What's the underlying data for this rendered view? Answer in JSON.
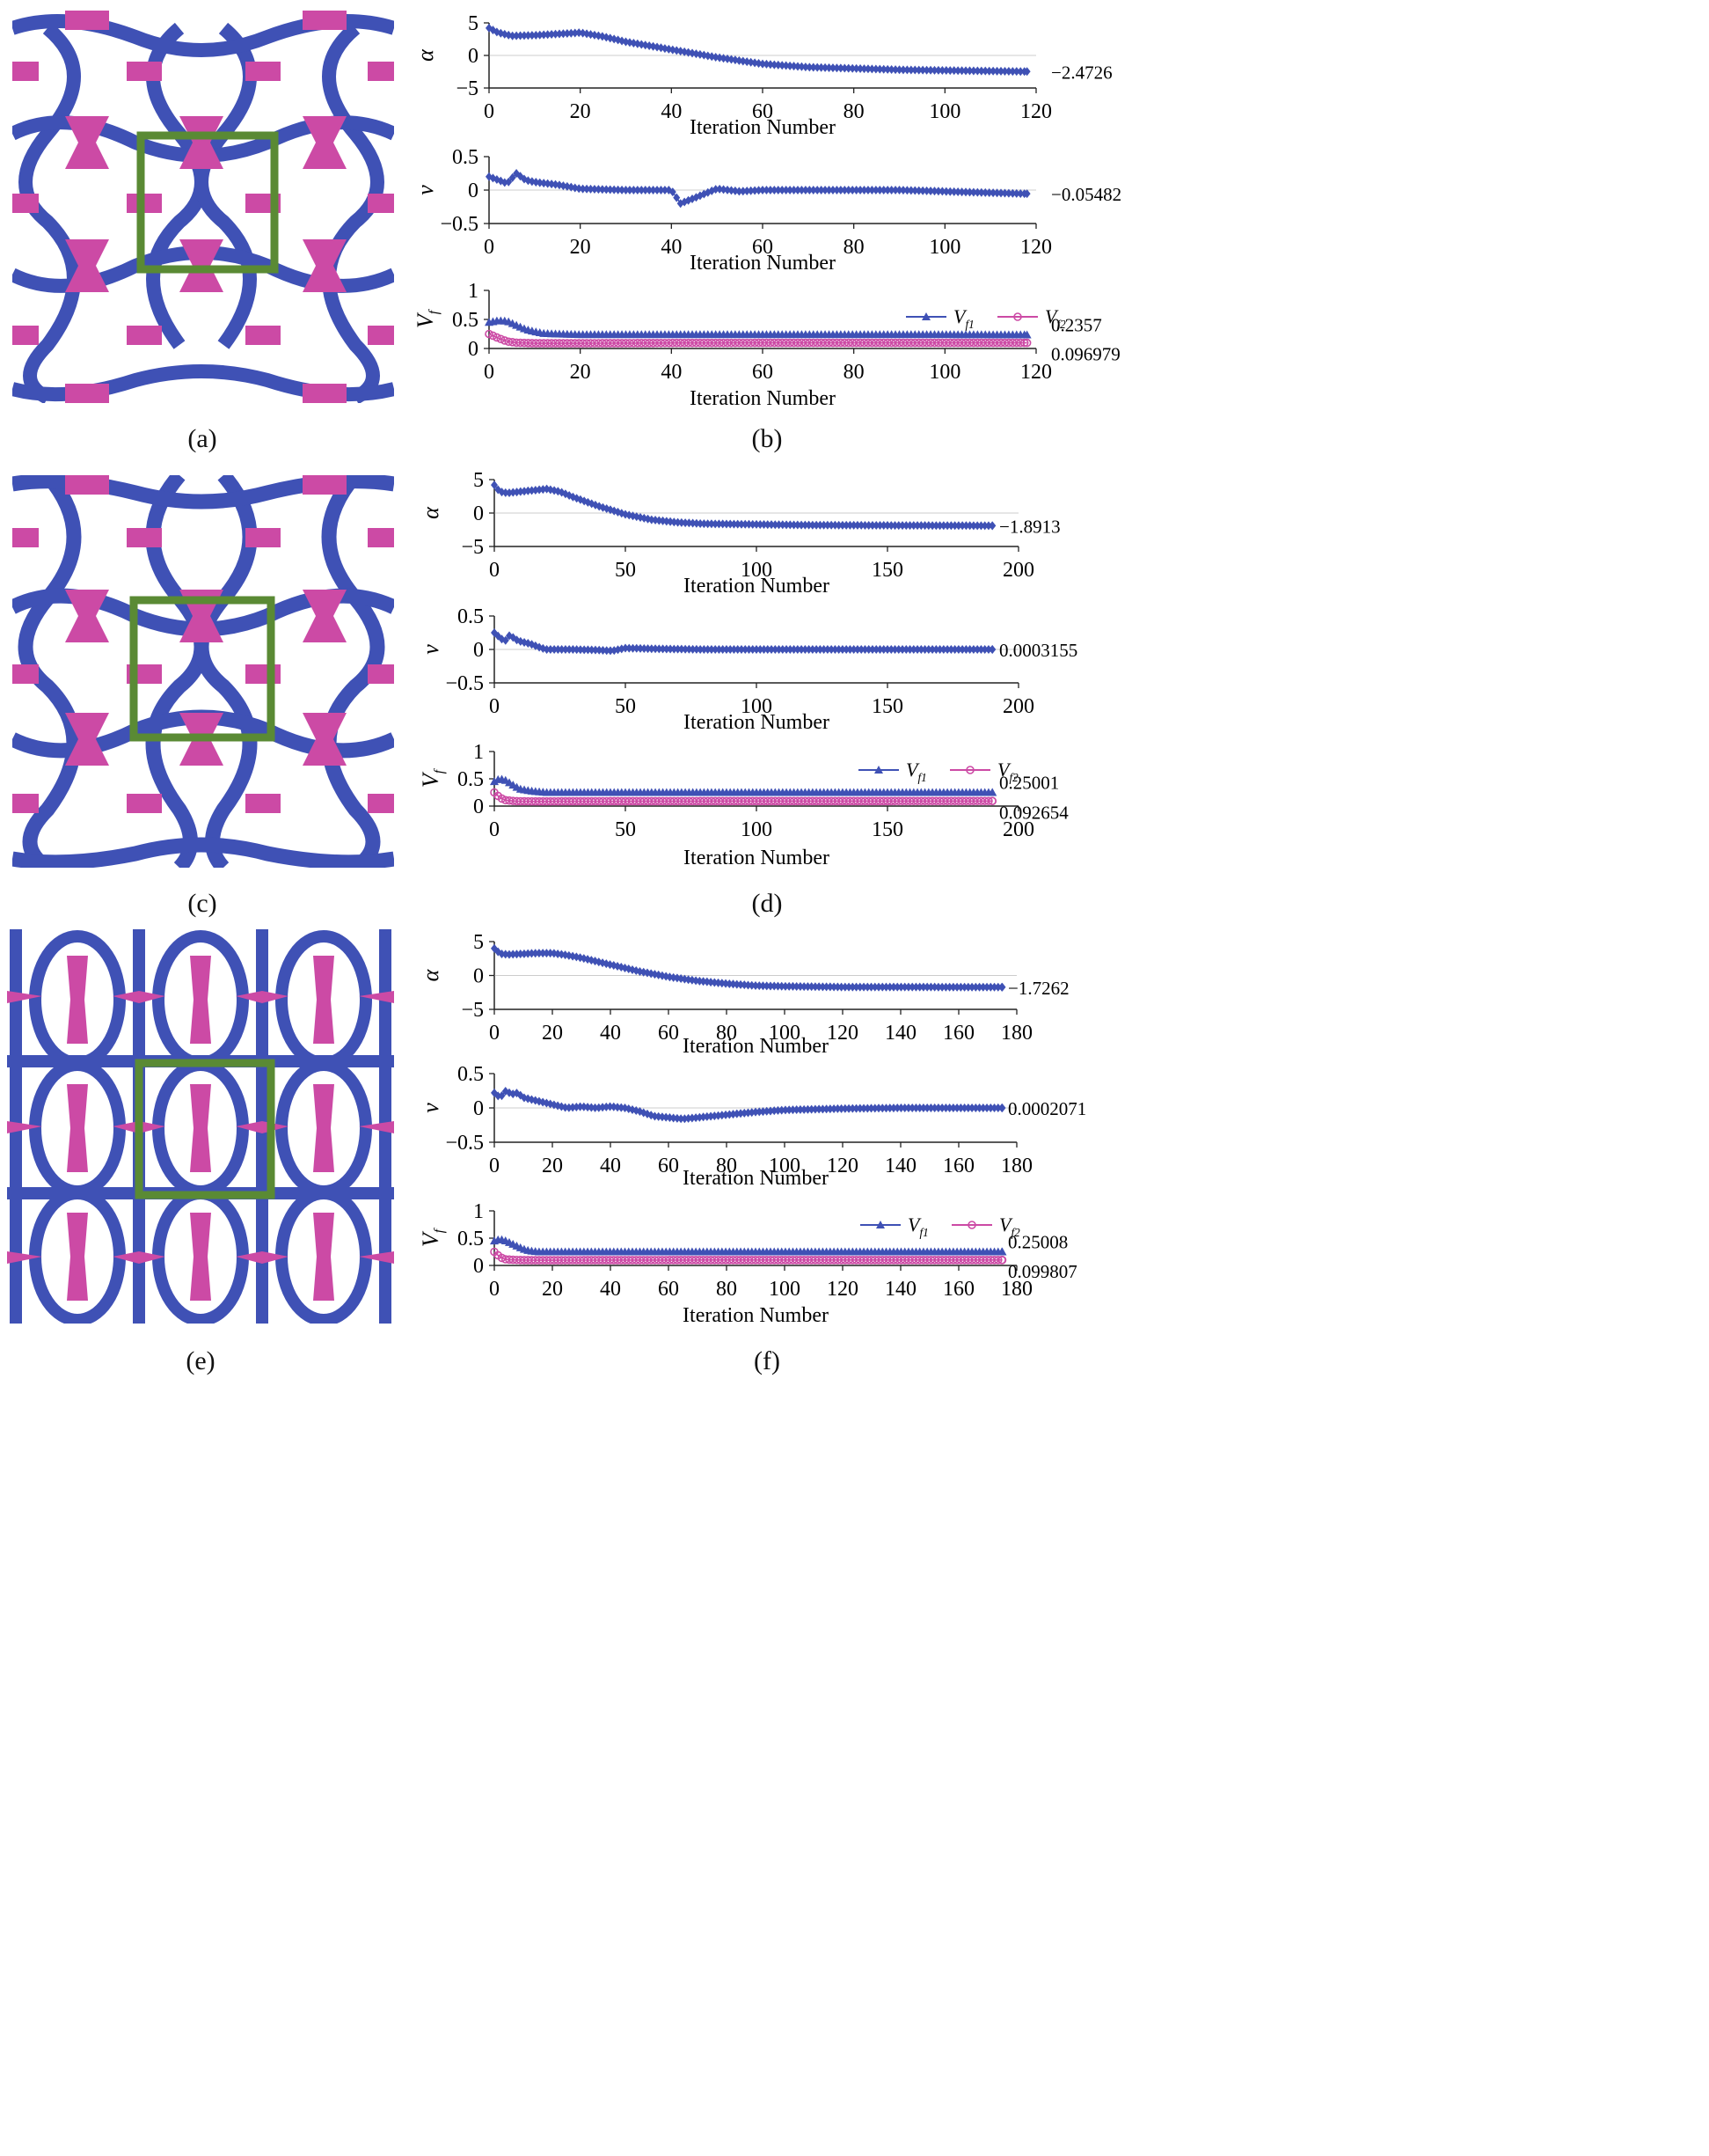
{
  "colors": {
    "blue": "#3f51b5",
    "magenta": "#cc4aa5",
    "frame": "#5a8a34"
  },
  "captions": [
    "(a)",
    "(b)",
    "(c)",
    "(d)",
    "(e)",
    "(f)"
  ],
  "chart_data": [
    {
      "panel": "b",
      "type": "line",
      "xlabel": "Iteration Number",
      "xlim": [
        0,
        120
      ],
      "xticks": [
        0,
        20,
        40,
        60,
        80,
        100,
        120
      ],
      "subplots": [
        {
          "ylabel": "α",
          "ylim": [
            -5,
            5
          ],
          "yticks": [
            "5",
            "0",
            "−5"
          ],
          "yvals": [
            5,
            0,
            -5
          ],
          "final_label": "−2.4726",
          "series": [
            {
              "color": "#3f51b5",
              "marker": "diamond",
              "x": [
                0,
                2,
                5,
                10,
                15,
                20,
                25,
                30,
                40,
                50,
                60,
                70,
                80,
                90,
                100,
                110,
                118
              ],
              "y": [
                4.2,
                3.5,
                3.0,
                3.1,
                3.3,
                3.5,
                2.9,
                2.1,
                0.9,
                -0.3,
                -1.3,
                -1.8,
                -2.0,
                -2.2,
                -2.3,
                -2.4,
                -2.4726
              ]
            }
          ]
        },
        {
          "ylabel": "ν",
          "ylim": [
            -0.5,
            0.5
          ],
          "yticks": [
            "0.5",
            "0",
            "−0.5"
          ],
          "yvals": [
            0.5,
            0,
            -0.5
          ],
          "final_label": "−0.05482",
          "series": [
            {
              "color": "#3f51b5",
              "marker": "diamond",
              "x": [
                0,
                2,
                4,
                6,
                8,
                10,
                15,
                20,
                30,
                40,
                42,
                45,
                50,
                55,
                60,
                70,
                80,
                90,
                100,
                110,
                118
              ],
              "y": [
                0.2,
                0.15,
                0.1,
                0.25,
                0.15,
                0.12,
                0.08,
                0.02,
                0.0,
                0.0,
                -0.2,
                -0.12,
                0.02,
                -0.02,
                0.0,
                0.0,
                0.0,
                0.0,
                -0.02,
                -0.04,
                -0.05482
              ]
            }
          ]
        },
        {
          "ylabel": "V_f",
          "ylim": [
            0,
            1
          ],
          "yticks": [
            "1",
            "0.5",
            "0"
          ],
          "yvals": [
            1,
            0.5,
            0
          ],
          "final_label": "",
          "legend": true,
          "series": [
            {
              "name": "V_f1",
              "color": "#3f51b5",
              "marker": "triangle",
              "final_label": "0.2357",
              "x": [
                0,
                2,
                4,
                6,
                8,
                10,
                12,
                15,
                20,
                40,
                60,
                80,
                100,
                118
              ],
              "y": [
                0.45,
                0.48,
                0.47,
                0.4,
                0.33,
                0.29,
                0.26,
                0.25,
                0.24,
                0.24,
                0.24,
                0.24,
                0.24,
                0.2357
              ]
            },
            {
              "name": "V_f2",
              "color": "#cc4aa5",
              "marker": "circle",
              "final_label": "0.096979",
              "x": [
                0,
                2,
                4,
                6,
                10,
                20,
                40,
                60,
                80,
                100,
                118
              ],
              "y": [
                0.25,
                0.18,
                0.12,
                0.1,
                0.09,
                0.09,
                0.095,
                0.097,
                0.097,
                0.097,
                0.096979
              ]
            }
          ]
        }
      ]
    },
    {
      "panel": "d",
      "type": "line",
      "xlabel": "Iteration Number",
      "xlim": [
        0,
        200
      ],
      "xticks": [
        0,
        50,
        100,
        150,
        200
      ],
      "subplots": [
        {
          "ylabel": "α",
          "ylim": [
            -5,
            5
          ],
          "yticks": [
            "5",
            "0",
            "−5"
          ],
          "yvals": [
            5,
            0,
            -5
          ],
          "final_label": "−1.8913",
          "series": [
            {
              "color": "#3f51b5",
              "marker": "diamond",
              "x": [
                0,
                2,
                5,
                10,
                15,
                20,
                25,
                30,
                40,
                50,
                60,
                70,
                80,
                100,
                120,
                150,
                190
              ],
              "y": [
                4.2,
                3.2,
                3.0,
                3.2,
                3.4,
                3.6,
                3.2,
                2.4,
                1.0,
                -0.2,
                -1.0,
                -1.4,
                -1.6,
                -1.7,
                -1.8,
                -1.85,
                -1.8913
              ]
            }
          ]
        },
        {
          "ylabel": "ν",
          "ylim": [
            -0.5,
            0.5
          ],
          "yticks": [
            "0.5",
            "0",
            "−0.5"
          ],
          "yvals": [
            0.5,
            0,
            -0.5
          ],
          "final_label": "0.0003155",
          "series": [
            {
              "color": "#3f51b5",
              "marker": "diamond",
              "x": [
                0,
                2,
                4,
                6,
                8,
                10,
                14,
                18,
                20,
                30,
                40,
                45,
                50,
                60,
                80,
                100,
                150,
                190
              ],
              "y": [
                0.25,
                0.18,
                0.12,
                0.22,
                0.15,
                0.12,
                0.08,
                0.02,
                0.0,
                0.0,
                -0.01,
                -0.02,
                0.02,
                0.01,
                0.0,
                0.0,
                0.0,
                0.0003155
              ]
            }
          ]
        },
        {
          "ylabel": "V_f",
          "ylim": [
            0,
            1
          ],
          "yticks": [
            "1",
            "0.5",
            "0"
          ],
          "yvals": [
            1,
            0.5,
            0
          ],
          "final_label": "",
          "legend": true,
          "series": [
            {
              "name": "V_f1",
              "color": "#3f51b5",
              "marker": "triangle",
              "final_label": "0.25001",
              "x": [
                0,
                2,
                4,
                6,
                8,
                10,
                15,
                20,
                30,
                60,
                100,
                150,
                190
              ],
              "y": [
                0.45,
                0.5,
                0.48,
                0.42,
                0.36,
                0.31,
                0.27,
                0.25,
                0.25,
                0.25,
                0.25,
                0.25,
                0.25001
              ]
            },
            {
              "name": "V_f2",
              "color": "#cc4aa5",
              "marker": "circle",
              "final_label": "0.092654",
              "x": [
                0,
                2,
                4,
                8,
                15,
                30,
                60,
                100,
                150,
                190
              ],
              "y": [
                0.25,
                0.16,
                0.11,
                0.09,
                0.085,
                0.088,
                0.09,
                0.092,
                0.092,
                0.092654
              ]
            }
          ]
        }
      ]
    },
    {
      "panel": "f",
      "type": "line",
      "xlabel": "Iteration Number",
      "xlim": [
        0,
        180
      ],
      "xticks": [
        0,
        20,
        40,
        60,
        80,
        100,
        120,
        140,
        160,
        180
      ],
      "subplots": [
        {
          "ylabel": "α",
          "ylim": [
            -5,
            5
          ],
          "yticks": [
            "5",
            "0",
            "−5"
          ],
          "yvals": [
            5,
            0,
            -5
          ],
          "final_label": "−1.7262",
          "series": [
            {
              "color": "#3f51b5",
              "marker": "diamond",
              "x": [
                0,
                2,
                5,
                10,
                15,
                20,
                25,
                30,
                40,
                50,
                60,
                70,
                80,
                90,
                100,
                120,
                140,
                160,
                175
              ],
              "y": [
                4.0,
                3.2,
                3.1,
                3.2,
                3.3,
                3.3,
                3.0,
                2.6,
                1.6,
                0.6,
                -0.2,
                -0.8,
                -1.2,
                -1.5,
                -1.6,
                -1.7,
                -1.7,
                -1.72,
                -1.7262
              ]
            }
          ]
        },
        {
          "ylabel": "ν",
          "ylim": [
            -0.5,
            0.5
          ],
          "yticks": [
            "0.5",
            "0",
            "−0.5"
          ],
          "yvals": [
            0.5,
            0,
            -0.5
          ],
          "final_label": "0.0002071",
          "series": [
            {
              "color": "#3f51b5",
              "marker": "diamond",
              "x": [
                0,
                2,
                4,
                6,
                8,
                10,
                15,
                20,
                25,
                30,
                35,
                40,
                45,
                50,
                55,
                60,
                65,
                70,
                80,
                90,
                100,
                120,
                140,
                160,
                175
              ],
              "y": [
                0.22,
                0.15,
                0.25,
                0.2,
                0.22,
                0.15,
                0.1,
                0.05,
                0.0,
                0.02,
                0.0,
                0.02,
                0.0,
                -0.05,
                -0.12,
                -0.14,
                -0.16,
                -0.14,
                -0.1,
                -0.06,
                -0.03,
                -0.01,
                0.0,
                0.0,
                0.0002071
              ]
            }
          ]
        },
        {
          "ylabel": "V_f",
          "ylim": [
            0,
            1
          ],
          "yticks": [
            "1",
            "0.5",
            "0"
          ],
          "yvals": [
            1,
            0.5,
            0
          ],
          "final_label": "",
          "legend": true,
          "series": [
            {
              "name": "V_f1",
              "color": "#3f51b5",
              "marker": "triangle",
              "final_label": "0.25008",
              "x": [
                0,
                2,
                4,
                6,
                8,
                10,
                12,
                15,
                20,
                40,
                80,
                120,
                160,
                175
              ],
              "y": [
                0.45,
                0.48,
                0.45,
                0.4,
                0.35,
                0.3,
                0.27,
                0.25,
                0.25,
                0.25,
                0.25,
                0.25,
                0.25,
                0.25008
              ]
            },
            {
              "name": "V_f2",
              "color": "#cc4aa5",
              "marker": "circle",
              "final_label": "0.099807",
              "x": [
                0,
                2,
                4,
                8,
                15,
                30,
                60,
                100,
                140,
                175
              ],
              "y": [
                0.25,
                0.15,
                0.11,
                0.1,
                0.095,
                0.097,
                0.099,
                0.0998,
                0.0998,
                0.099807
              ]
            }
          ]
        }
      ]
    }
  ]
}
